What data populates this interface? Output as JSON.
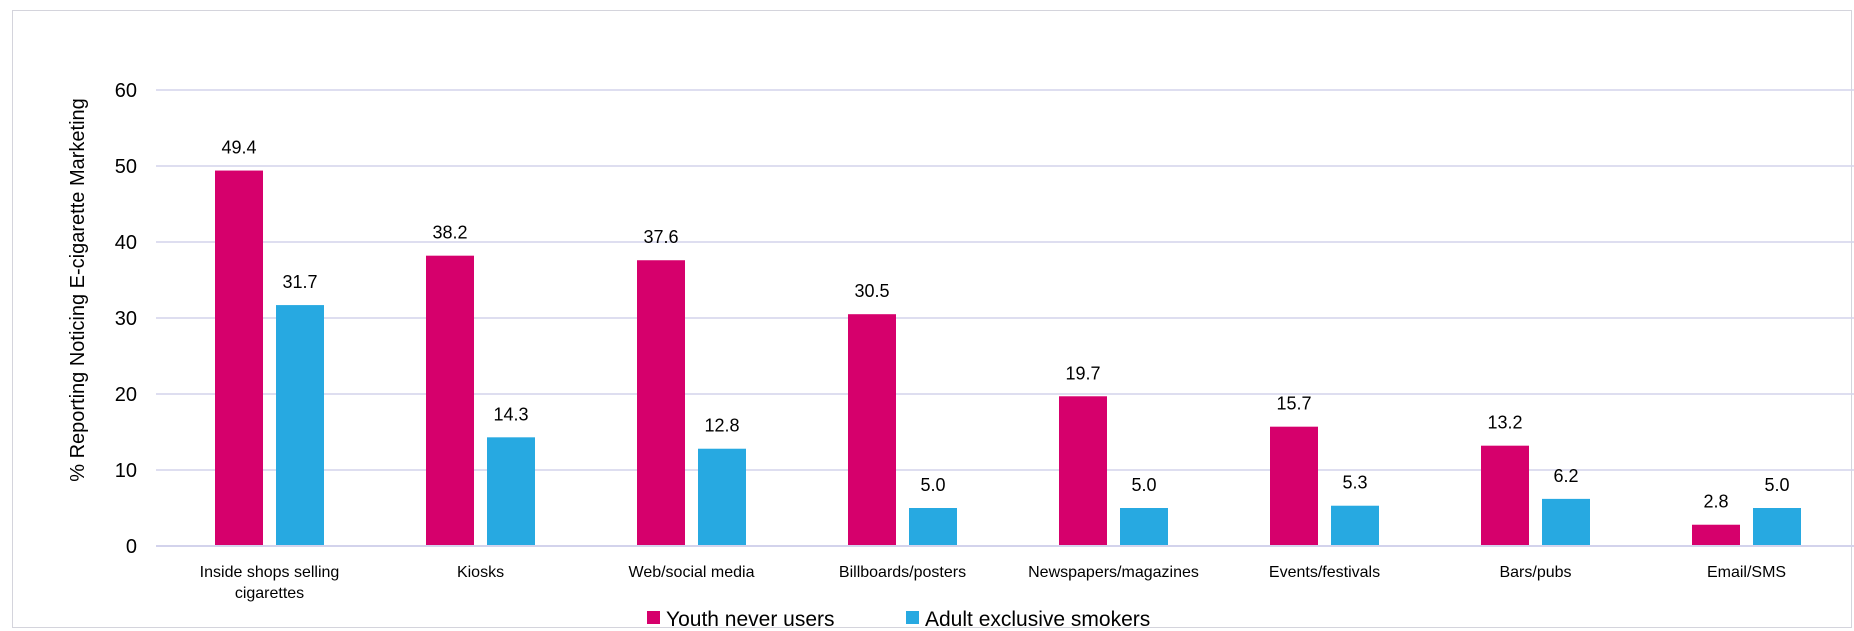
{
  "chart_data": {
    "type": "bar",
    "ylabel": "% Reporting Noticing E-cigarette Marketing",
    "ylim": [
      0,
      60
    ],
    "yticks": [
      0,
      10,
      20,
      30,
      40,
      50,
      60
    ],
    "grid": true,
    "legend_position": "bottom",
    "categories": [
      [
        "Inside shops selling",
        "cigarettes"
      ],
      [
        "Kiosks"
      ],
      [
        "Web/social media"
      ],
      [
        "Billboards/posters"
      ],
      [
        "Newspapers/magazines"
      ],
      [
        "Events/festivals"
      ],
      [
        "Bars/pubs"
      ],
      [
        "Email/SMS"
      ]
    ],
    "series": [
      {
        "name": "Youth never users",
        "color": "#d6006c",
        "values": [
          49.4,
          38.2,
          37.6,
          30.5,
          19.7,
          15.7,
          13.2,
          2.8
        ],
        "labels": [
          "49.4",
          "38.2",
          "37.6",
          "30.5",
          "19.7",
          "15.7",
          "13.2",
          "2.8"
        ]
      },
      {
        "name": "Adult exclusive smokers",
        "color": "#27a9e1",
        "values": [
          31.7,
          14.3,
          12.8,
          5.0,
          5.0,
          5.3,
          6.2,
          5.0
        ],
        "labels": [
          "31.7",
          "14.3",
          "12.8",
          "5.0",
          "5.0",
          "5.3",
          "6.2",
          "5.0"
        ]
      }
    ]
  }
}
